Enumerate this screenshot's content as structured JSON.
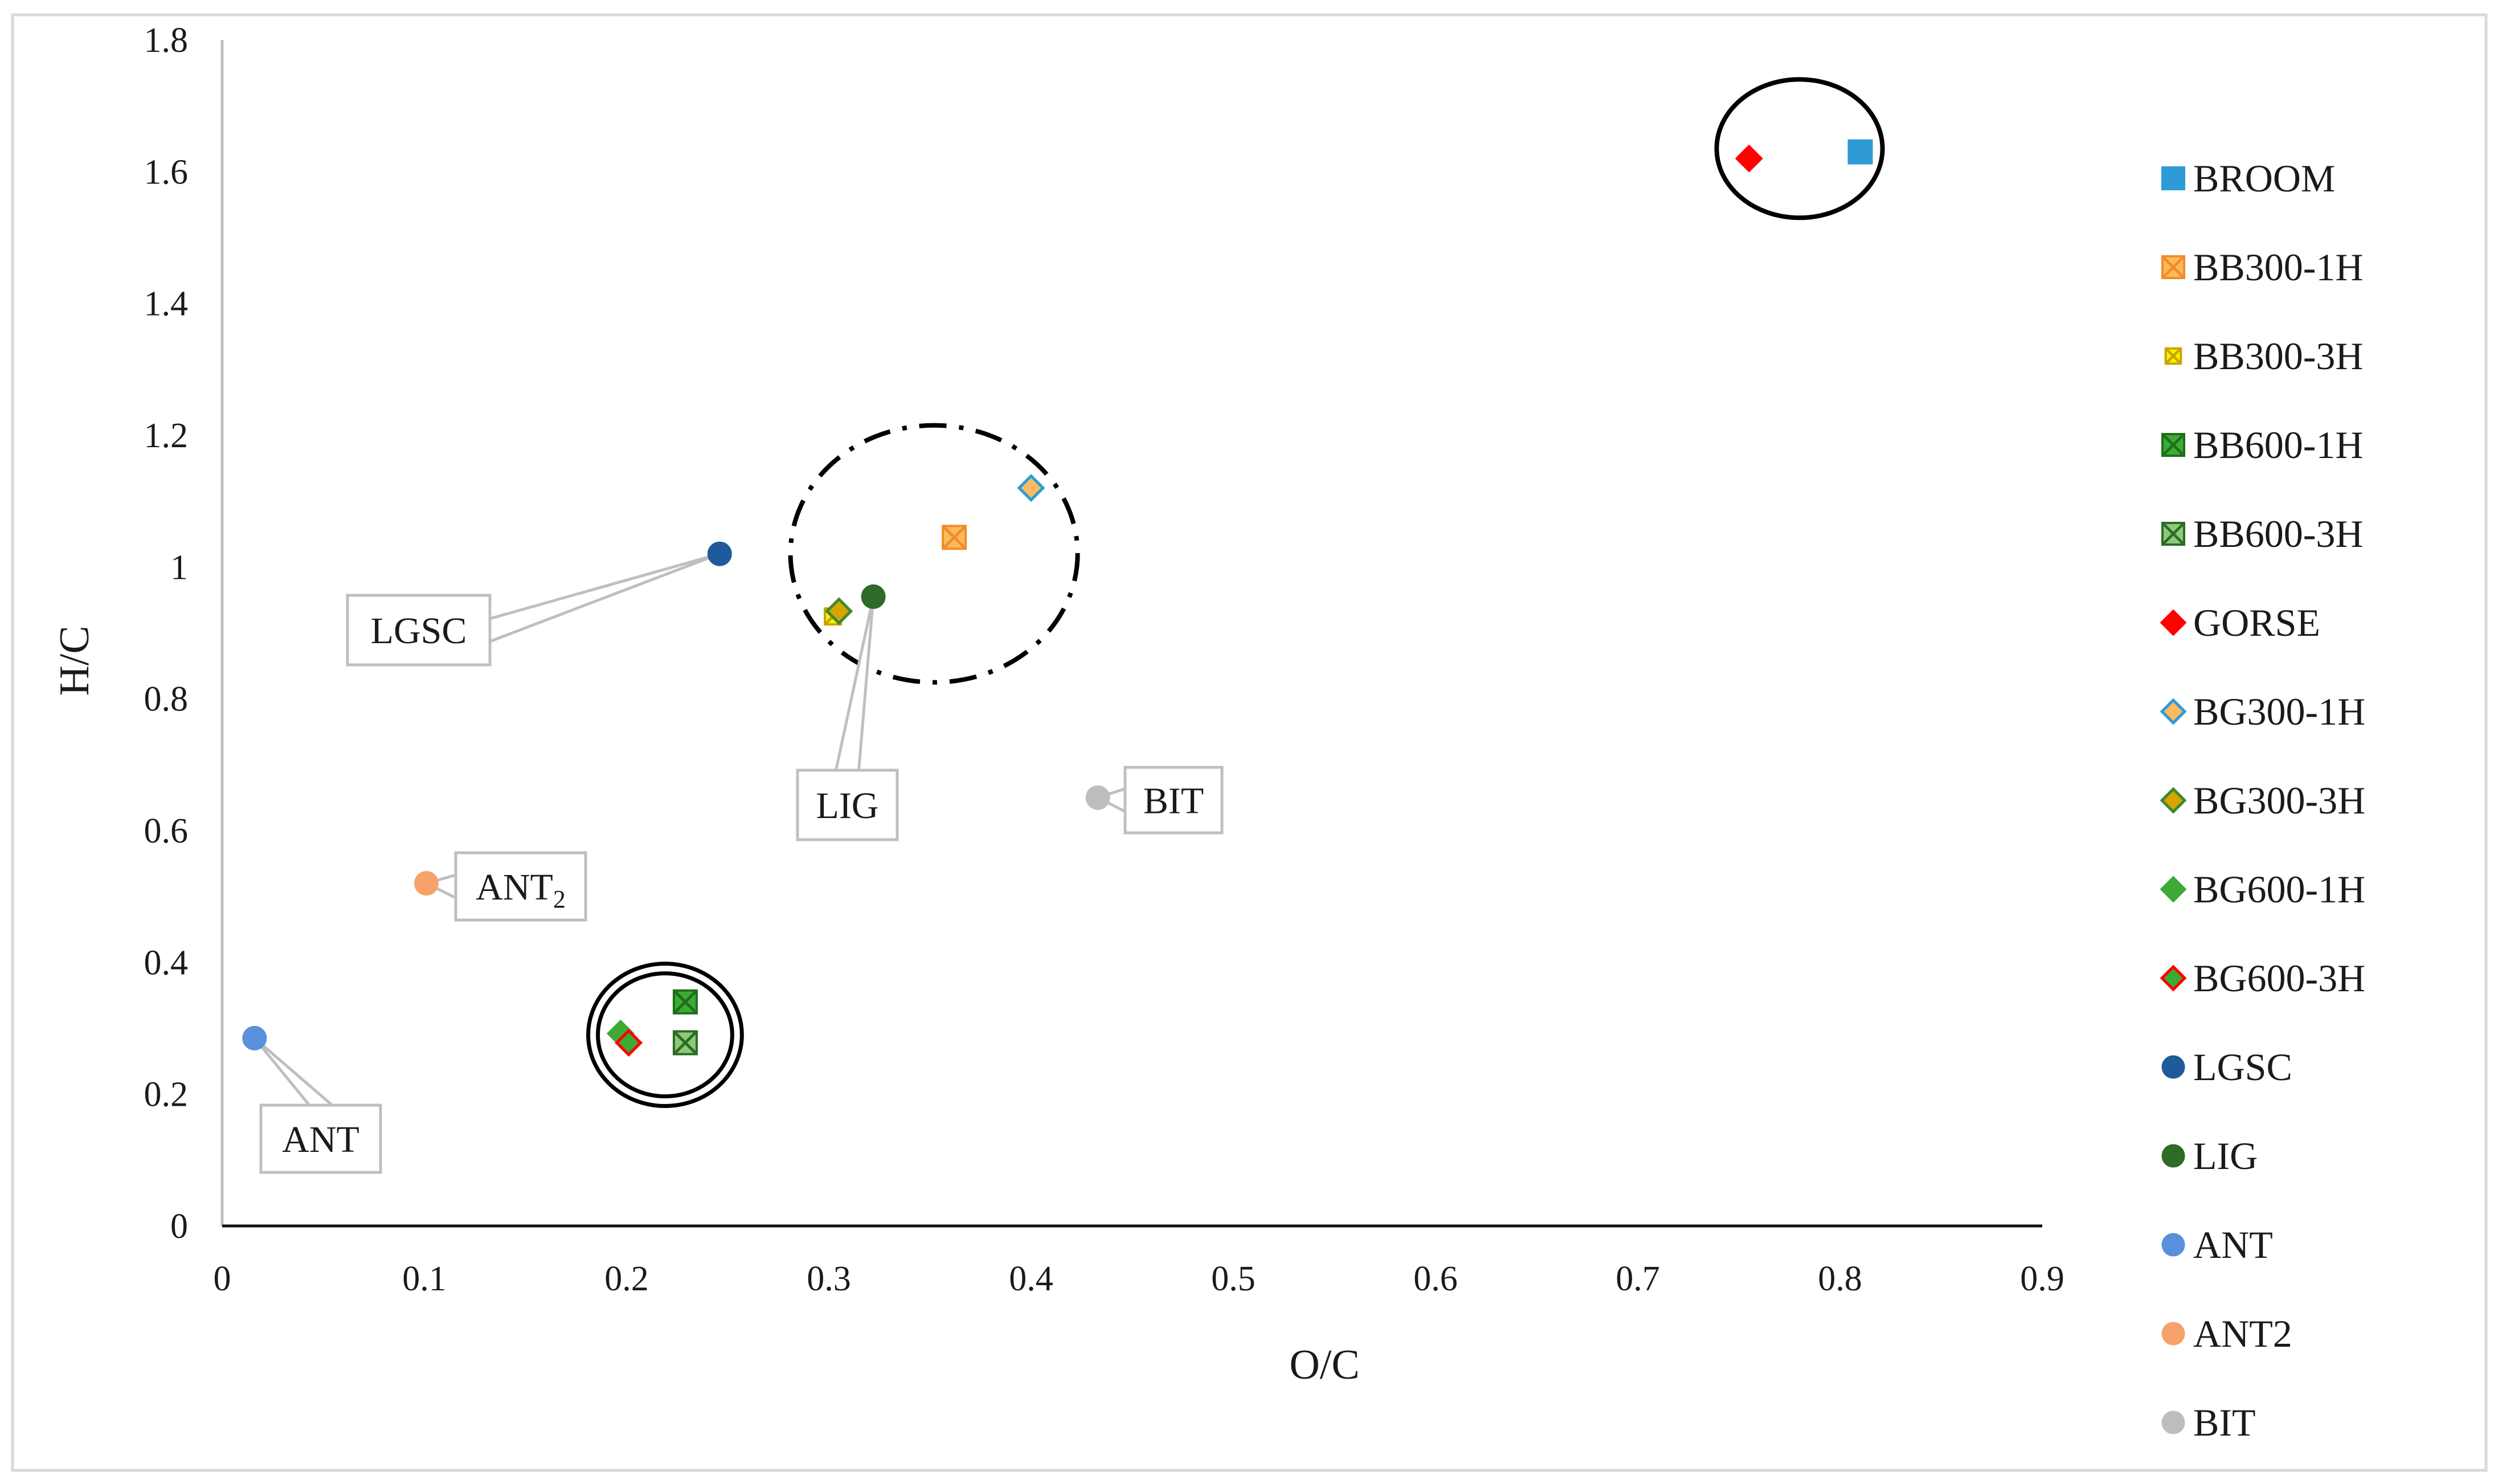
{
  "chart_data": {
    "type": "scatter",
    "xlabel": "O/C",
    "ylabel": "H/C",
    "xlim": [
      0,
      0.9
    ],
    "ylim": [
      0,
      1.8
    ],
    "xticks": [
      "0",
      "0.1",
      "0.2",
      "0.3",
      "0.4",
      "0.5",
      "0.6",
      "0.7",
      "0.8",
      "0.9"
    ],
    "yticks": [
      "0",
      "0.2",
      "0.4",
      "0.6",
      "0.8",
      "1",
      "1.2",
      "1.4",
      "1.6",
      "1.8"
    ],
    "grid": false,
    "legend_position": "right",
    "series": [
      {
        "name": "BROOM",
        "marker": "square",
        "fill": "#2E9BD6",
        "stroke": "#2E9BD6",
        "x": 0.81,
        "y": 1.63
      },
      {
        "name": "BB300-1H",
        "marker": "square-x",
        "fill": "#FDBA5F",
        "stroke": "#F28C28",
        "x": 0.362,
        "y": 1.045
      },
      {
        "name": "BB300-3H",
        "marker": "square-x-small",
        "fill": "#FFF200",
        "stroke": "#C9A600",
        "x": 0.302,
        "y": 0.925
      },
      {
        "name": "BB600-1H",
        "marker": "square-x",
        "fill": "#3DAA35",
        "stroke": "#1E6E1A",
        "x": 0.229,
        "y": 0.34
      },
      {
        "name": "BB600-3H",
        "marker": "square-x",
        "fill": "#8CCB7A",
        "stroke": "#2E6B26",
        "x": 0.229,
        "y": 0.278
      },
      {
        "name": "GORSE",
        "marker": "diamond",
        "fill": "#FF0000",
        "stroke": "#FF0000",
        "x": 0.755,
        "y": 1.62
      },
      {
        "name": "BG300-1H",
        "marker": "diamond",
        "fill": "#FDBA5F",
        "stroke": "#2E9BD6",
        "x": 0.4,
        "y": 1.12
      },
      {
        "name": "BG300-3H",
        "marker": "diamond",
        "fill": "#D9A400",
        "stroke": "#3D8A2E",
        "x": 0.305,
        "y": 0.933
      },
      {
        "name": "BG600-1H",
        "marker": "diamond",
        "fill": "#3DAA35",
        "stroke": "#3DAA35",
        "x": 0.197,
        "y": 0.292
      },
      {
        "name": "BG600-3H",
        "marker": "diamond",
        "fill": "#3DAA35",
        "stroke": "#FF0000",
        "x": 0.201,
        "y": 0.278
      },
      {
        "name": "LGSC",
        "marker": "circle",
        "fill": "#1F5B9A",
        "stroke": "#1F5B9A",
        "x": 0.246,
        "y": 1.02
      },
      {
        "name": "LIG",
        "marker": "circle",
        "fill": "#2E6B26",
        "stroke": "#2E6B26",
        "x": 0.322,
        "y": 0.955
      },
      {
        "name": "ANT",
        "marker": "circle",
        "fill": "#5A8FDB",
        "stroke": "#5A8FDB",
        "x": 0.016,
        "y": 0.285
      },
      {
        "name": "ANT2",
        "marker": "circle",
        "fill": "#F7A26B",
        "stroke": "#F7A26B",
        "x": 0.101,
        "y": 0.52
      },
      {
        "name": "BIT",
        "marker": "circle",
        "fill": "#BDBDBD",
        "stroke": "#BDBDBD",
        "x": 0.433,
        "y": 0.65
      }
    ],
    "callouts": [
      {
        "text": "LGSC",
        "target": "LGSC"
      },
      {
        "text": "LIG",
        "target": "LIG"
      },
      {
        "text": "BIT",
        "target": "BIT"
      },
      {
        "text": "ANT",
        "sub": "2",
        "target": "ANT2"
      },
      {
        "text": "ANT",
        "target": "ANT"
      }
    ],
    "group_circles": [
      {
        "style": "solid",
        "cx": 0.78,
        "cy": 1.635,
        "rx": 0.041,
        "ry": 0.105
      },
      {
        "style": "dash-dot",
        "cx": 0.352,
        "cy": 1.02,
        "rx": 0.071,
        "ry": 0.195
      },
      {
        "style": "double",
        "cx": 0.219,
        "cy": 0.29,
        "rx": 0.038,
        "ry": 0.108
      }
    ]
  }
}
